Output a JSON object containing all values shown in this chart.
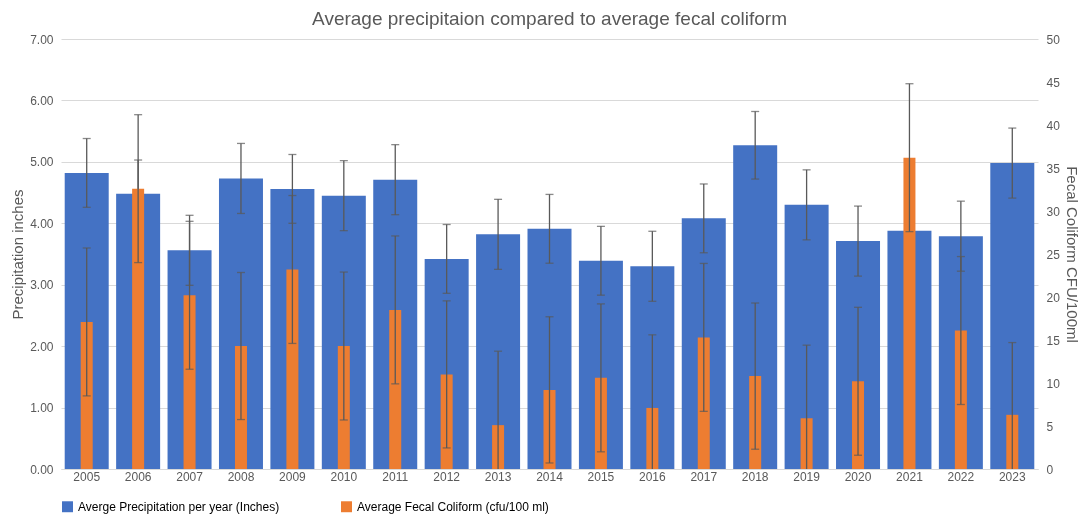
{
  "chart_data": {
    "type": "bar",
    "title": "Average precipitaion compared to average fecal coliform",
    "ylabel": "Precipitation inches",
    "y2label": "Fecal Coliform CFU/100ml",
    "categories": [
      "2005",
      "2006",
      "2007",
      "2008",
      "2009",
      "2010",
      "2011",
      "2012",
      "2013",
      "2014",
      "2015",
      "2016",
      "2017",
      "2018",
      "2019",
      "2020",
      "2021",
      "2022",
      "2023"
    ],
    "series": [
      {
        "name": "Averge Precipitation per year (Inches)",
        "color": "#4472c4",
        "values": [
          4.82,
          4.48,
          3.56,
          4.73,
          4.56,
          4.45,
          4.71,
          3.42,
          3.82,
          3.91,
          3.39,
          3.3,
          4.08,
          5.27,
          4.3,
          3.71,
          3.88,
          3.79,
          4.98
        ],
        "errors": [
          0.56,
          0.55,
          0.57,
          0.57,
          0.56,
          0.57,
          0.57,
          0.56,
          0.57,
          0.56,
          0.56,
          0.57,
          0.56,
          0.55,
          0.57,
          0.57,
          0.56,
          0.57,
          0.57
        ]
      },
      {
        "name": "Average Fecal Coliform (cfu/100 ml)",
        "color": "#ed7d31",
        "axis": "y2",
        "values": [
          17.1,
          32.6,
          20.2,
          14.3,
          23.2,
          14.3,
          18.5,
          11.0,
          5.1,
          9.2,
          10.6,
          7.1,
          15.3,
          10.8,
          5.9,
          10.2,
          36.2,
          16.1,
          6.3
        ],
        "errors": [
          8.6,
          8.6,
          8.6,
          8.55,
          8.6,
          8.6,
          8.6,
          8.55,
          8.6,
          8.5,
          8.6,
          8.5,
          8.6,
          8.5,
          8.5,
          8.6,
          8.6,
          8.6,
          8.4
        ]
      }
    ],
    "ylim": [
      0,
      7
    ],
    "yticks": [
      {
        "value": 0,
        "label": "0.00"
      },
      {
        "value": 1,
        "label": "1.00"
      },
      {
        "value": 2,
        "label": "2.00"
      },
      {
        "value": 3,
        "label": "3.00"
      },
      {
        "value": 4,
        "label": "4.00"
      },
      {
        "value": 5,
        "label": "5.00"
      },
      {
        "value": 6,
        "label": "6.00"
      },
      {
        "value": 7,
        "label": "7.00"
      }
    ],
    "y2lim": [
      0,
      50
    ],
    "y2ticks": [
      0,
      5,
      10,
      15,
      20,
      25,
      30,
      35,
      40,
      45,
      50
    ],
    "grid": "y",
    "legend": "bottom"
  }
}
